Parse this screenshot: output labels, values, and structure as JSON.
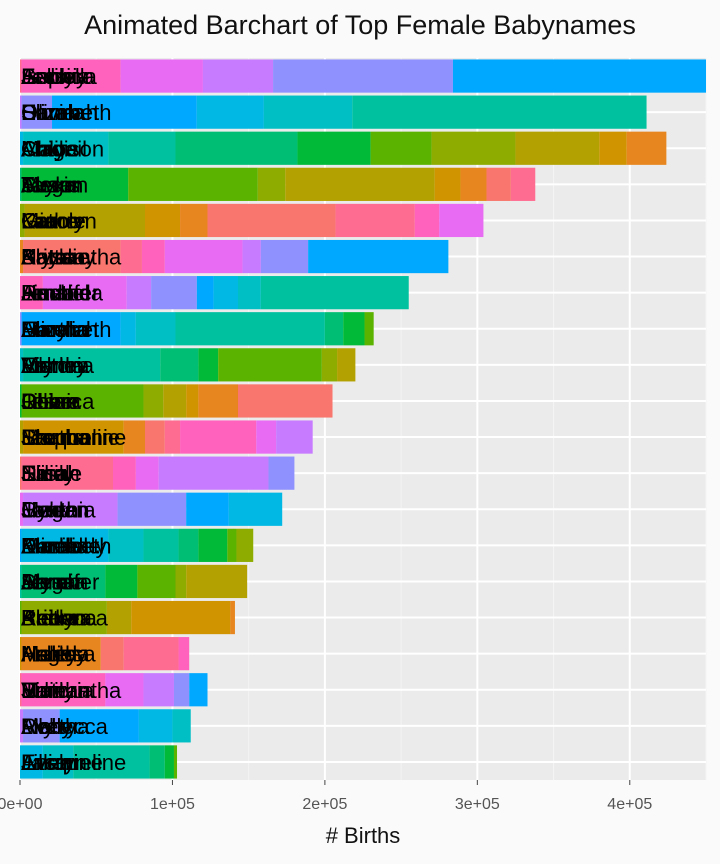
{
  "chart_data": {
    "type": "bar",
    "orientation": "horizontal",
    "stacked": true,
    "title": "Animated Barchart of Top Female Babynames",
    "xlabel": "# Births",
    "ylabel": "",
    "xlim": [
      0,
      450000
    ],
    "xticks": [
      0,
      100000,
      200000,
      300000,
      400000
    ],
    "xtick_labels": [
      "0e+00",
      "1e+05",
      "2e+05",
      "3e+05",
      "4e+05"
    ],
    "grid": true,
    "legend": "none",
    "rows": [
      {
        "label_layers": [
          "Sophia",
          "Emily",
          "Isabella",
          "Ashley",
          "Jessica"
        ],
        "values": [
          1000,
          65000,
          54000,
          46000,
          118000,
          166000
        ]
      },
      {
        "label_layers": [
          "Olivia",
          "Emma",
          "Hannah",
          "Sarah",
          "Elizabeth"
        ],
        "values": [
          1000,
          20000,
          95000,
          44000,
          58000,
          193000
        ]
      },
      {
        "label_layers": [
          "Madison",
          "Chloe",
          "Abigail",
          "Amy",
          "Claire"
        ],
        "values": [
          2000,
          56000,
          44000,
          80000,
          48000,
          40000,
          55000,
          55000,
          18000,
          26000
        ]
      },
      {
        "label_layers": [
          "Ava",
          "Taylor",
          "Alexis",
          "Megan",
          "Susan"
        ],
        "values": [
          1000,
          70000,
          85000,
          18000,
          98000,
          17000,
          17000,
          16000,
          16000
        ]
      },
      {
        "label_layers": [
          "Mia",
          "Grace",
          "Lauren",
          "Kathryn",
          "Carole"
        ],
        "values": [
          3000,
          79000,
          23000,
          18000,
          84000,
          52000,
          16000,
          29000
        ]
      },
      {
        "label_layers": [
          "Natalie",
          "Kayla",
          "Samantha",
          "Brittany",
          "Alyssa"
        ],
        "values": [
          2000,
          64000,
          14000,
          15000,
          51000,
          12000,
          31000,
          92000
        ]
      },
      {
        "label_layers": [
          "Amanda",
          "Jennifer",
          "Rachel",
          "Heather",
          "Linda"
        ],
        "values": [
          15000,
          55000,
          16000,
          30000,
          11000,
          16000,
          15000,
          97000
        ]
      },
      {
        "label_layers": [
          "Elizabeth",
          "Hannah",
          "Amelia",
          "Lucy",
          "Martha"
        ],
        "values": [
          1000,
          65000,
          10000,
          26000,
          98000,
          12000,
          14000,
          6000
        ]
      },
      {
        "label_layers": [
          "Victoria",
          "Emma",
          "Ashley",
          "Lily",
          "Martha"
        ],
        "values": [
          2000,
          90000,
          25000,
          13000,
          68000,
          10000,
          12000
        ]
      },
      {
        "label_layers": [
          "Debra",
          "Lillian",
          "Jessica",
          "Chloe",
          "Rose"
        ],
        "values": [
          1000,
          80000,
          13000,
          15000,
          8000,
          26000,
          62000
        ]
      },
      {
        "label_layers": [
          "Sharon",
          "Stephanie",
          "Jacqueline",
          "Emma",
          "Martha"
        ],
        "values": [
          2000,
          66000,
          14000,
          13000,
          10000,
          50000,
          13000,
          24000
        ]
      },
      {
        "label_layers": [
          "Emily",
          "Nicole",
          "Elisa",
          "Sarah",
          "Julia"
        ],
        "values": [
          1000,
          60000,
          15000,
          15000,
          72000,
          17000
        ]
      },
      {
        "label_layers": [
          "Lauren",
          "Cynthia",
          "Helen",
          "Megan",
          "Jordan"
        ],
        "values": [
          2000,
          62000,
          45000,
          28000,
          35000
        ]
      },
      {
        "label_layers": [
          "Danielle",
          "Kimberly",
          "Amelia",
          "Elizabeth",
          "Martha"
        ],
        "values": [
          1000,
          57000,
          23000,
          23000,
          13000,
          19000,
          6000,
          11000
        ]
      },
      {
        "label_layers": [
          "Jennifer",
          "Anna",
          "Alyssa",
          "Sarah",
          "Megan"
        ],
        "values": [
          1000,
          55000,
          21000,
          25000,
          7000,
          40000
        ]
      },
      {
        "label_layers": [
          "Kaitlyn",
          "Brianna",
          "Alexa",
          "Rebecca",
          "Andrea"
        ],
        "values": [
          1000,
          56000,
          16000,
          65000,
          3000
        ]
      },
      {
        "label_layers": [
          "Haley",
          "Melissa",
          "Ashley",
          "Angela",
          "Martha"
        ],
        "values": [
          1000,
          52000,
          15000,
          36000,
          7000
        ]
      },
      {
        "label_layers": [
          "Samantha",
          "Victoria",
          "Julie",
          "Emily",
          "Martha"
        ],
        "values": [
          1000,
          55000,
          25000,
          20000,
          10000,
          12000
        ]
      },
      {
        "label_layers": [
          "Lily",
          "Rebecca",
          "Molly",
          "Avery",
          "Martha"
        ],
        "values": [
          2000,
          24000,
          52000,
          22000,
          12000
        ]
      },
      {
        "label_layers": [
          "Jasmine",
          "Lillian",
          "Anna",
          "Jacqueline",
          "Evelyn"
        ],
        "values": [
          15000,
          20000,
          50000,
          10000,
          6000,
          2000
        ]
      }
    ],
    "palette": [
      "#F8766D",
      "#E7851E",
      "#D09400",
      "#B2A100",
      "#8EAB00",
      "#5BB300",
      "#00BA38",
      "#00BF74",
      "#00C19F",
      "#00BFC4",
      "#00B8E3",
      "#00A9FF",
      "#8F91FF",
      "#C77CFF",
      "#E76BF3",
      "#FF62BC",
      "#FF6C91"
    ]
  }
}
